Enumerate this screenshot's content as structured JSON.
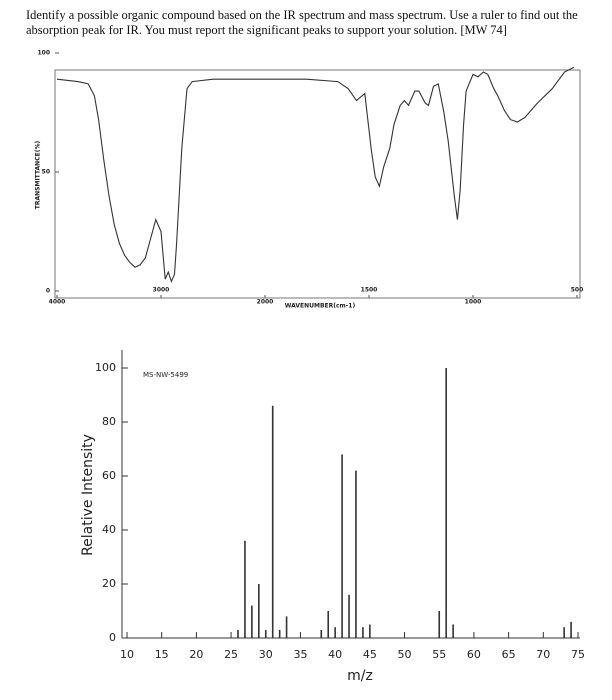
{
  "question": "Identify a possible organic compound based on the IR spectrum and mass spectrum. Use a ruler to find out the absorption peak for IR. You must report the significant peaks to support your solution. [MW 74]",
  "chart_data": [
    {
      "type": "line",
      "x_label": "WAVENUMBER(cm-1)",
      "y_label": "TRANSMITTANCE(%)",
      "x": [
        4000,
        3800,
        3700,
        3640,
        3600,
        3550,
        3500,
        3450,
        3400,
        3350,
        3300,
        3250,
        3200,
        3150,
        3100,
        3050,
        3000,
        2960,
        2930,
        2900,
        2870,
        2850,
        2800,
        2750,
        2700,
        2500,
        2200,
        2000,
        1800,
        1650,
        1600,
        1560,
        1520,
        1490,
        1470,
        1450,
        1430,
        1400,
        1380,
        1350,
        1330,
        1310,
        1280,
        1260,
        1230,
        1214,
        1190,
        1167,
        1140,
        1119,
        1090,
        1075,
        1062,
        1045,
        1033,
        1000,
        976,
        950,
        929,
        900,
        881,
        850,
        820,
        786,
        750,
        690,
        619,
        560,
        515
      ],
      "series": [
        {
          "color": "#333333",
          "values": [
            89,
            88,
            87,
            82,
            72,
            55,
            40,
            28,
            20,
            15,
            12,
            10,
            11,
            14,
            22,
            30,
            25,
            5,
            8,
            4,
            7,
            20,
            60,
            85,
            88,
            89,
            89,
            89,
            89,
            88,
            85,
            80,
            83,
            60,
            48,
            44,
            52,
            60,
            70,
            78,
            80,
            78,
            84,
            84,
            79,
            78,
            86,
            87,
            75,
            63,
            40,
            30,
            42,
            70,
            84,
            91,
            90,
            92,
            91,
            85,
            82,
            76,
            72,
            71,
            73,
            79,
            85,
            92,
            94
          ]
        }
      ],
      "xlim": [
        4000,
        500
      ],
      "xticks": [
        4000,
        3000,
        2000,
        1500,
        1000,
        500
      ],
      "ylim": [
        0,
        100
      ],
      "yticks": [
        0,
        50,
        100
      ]
    },
    {
      "type": "bar",
      "annotation": "MS-NW-5499",
      "x_label": "m/z",
      "y_label": "Relative Intensity",
      "color": "#333333",
      "x": [
        26,
        27,
        28,
        29,
        30,
        31,
        32,
        33,
        38,
        39,
        40,
        41,
        42,
        43,
        44,
        45,
        55,
        56,
        57,
        73,
        74
      ],
      "values": [
        3,
        36,
        12,
        20,
        3,
        86,
        3,
        8,
        3,
        10,
        4,
        68,
        16,
        62,
        4,
        5,
        10,
        100,
        5,
        4,
        6
      ],
      "xlim": [
        9,
        76
      ],
      "xticks": [
        10,
        15,
        20,
        25,
        30,
        35,
        40,
        45,
        50,
        55,
        60,
        65,
        70,
        75
      ],
      "ylim": [
        0,
        100
      ],
      "yticks": [
        0,
        20,
        40,
        60,
        80,
        100
      ]
    }
  ]
}
